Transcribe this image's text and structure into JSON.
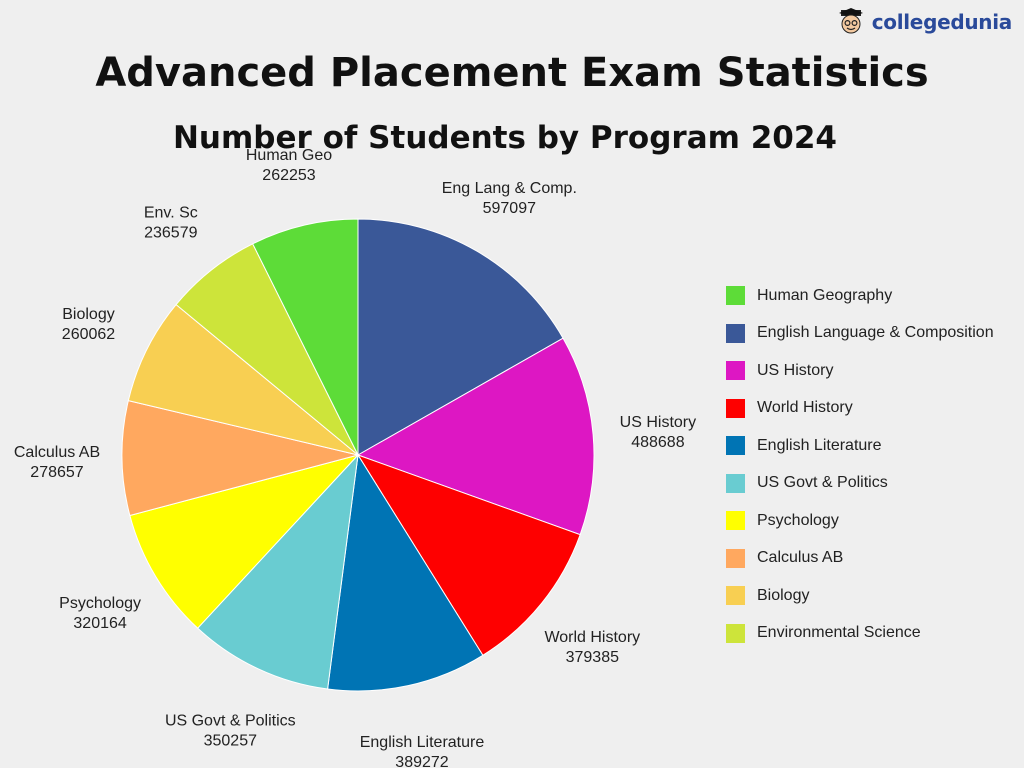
{
  "brand": {
    "name": "collegedunia",
    "icon": "mascot-icon"
  },
  "chart_data": {
    "type": "pie",
    "title": "Advanced Placement Exam Statistics",
    "subtitle": "Number of Students by Program 2024",
    "slices": [
      {
        "label": "Eng Lang & Comp.",
        "legend": "English Language & Composition",
        "value": 597097,
        "color": "#3a5898"
      },
      {
        "label": "US History",
        "legend": "US History",
        "value": 488688,
        "color": "#dd17c3"
      },
      {
        "label": "World History",
        "legend": "World History",
        "value": 379385,
        "color": "#fe0000"
      },
      {
        "label": "English Literature",
        "legend": "English Literature",
        "value": 389272,
        "color": "#0074b4"
      },
      {
        "label": "US Govt & Politics",
        "legend": "US Govt & Politics",
        "value": 350257,
        "color": "#69ccd1"
      },
      {
        "label": "Psychology",
        "legend": "Psychology",
        "value": 320164,
        "color": "#ffff00"
      },
      {
        "label": "Calculus AB",
        "legend": "Calculus AB",
        "value": 278657,
        "color": "#ffa85f"
      },
      {
        "label": "Biology",
        "legend": "Biology",
        "value": 260062,
        "color": "#f8cf52"
      },
      {
        "label": "Env. Sc",
        "legend": "Environmental Science",
        "value": 236579,
        "color": "#cde43a"
      },
      {
        "label": "Human Geo",
        "legend": "Human Geography",
        "value": 262253,
        "color": "#5ddc38"
      }
    ],
    "legend_order": [
      "Human Geography",
      "English Language & Composition",
      "US History",
      "World History",
      "English Literature",
      "US Govt & Politics",
      "Psychology",
      "Calculus AB",
      "Biology",
      "Environmental Science"
    ],
    "legend_placement": "right",
    "start": "12 o'clock",
    "direction": "clockwise"
  }
}
